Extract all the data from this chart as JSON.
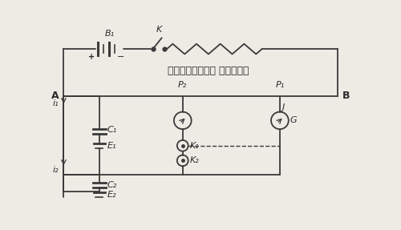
{
  "bg_color": "#eeebe5",
  "line_color": "#3a3a3a",
  "text_color": "#2a2a2a",
  "primary_circuit_label": "प्राथमिक परिपथ",
  "labels": {
    "B1": "B₁",
    "K": "K",
    "A": "A",
    "B": "B",
    "P1": "P₁",
    "P2": "P₂",
    "J": "J",
    "G": "G",
    "i1": "i₁",
    "i2": "i₂",
    "C1": "C₁",
    "C2": "C₂",
    "E1": "E₁",
    "E2": "E₂",
    "K1": "K₁",
    "K2": "K₂"
  }
}
